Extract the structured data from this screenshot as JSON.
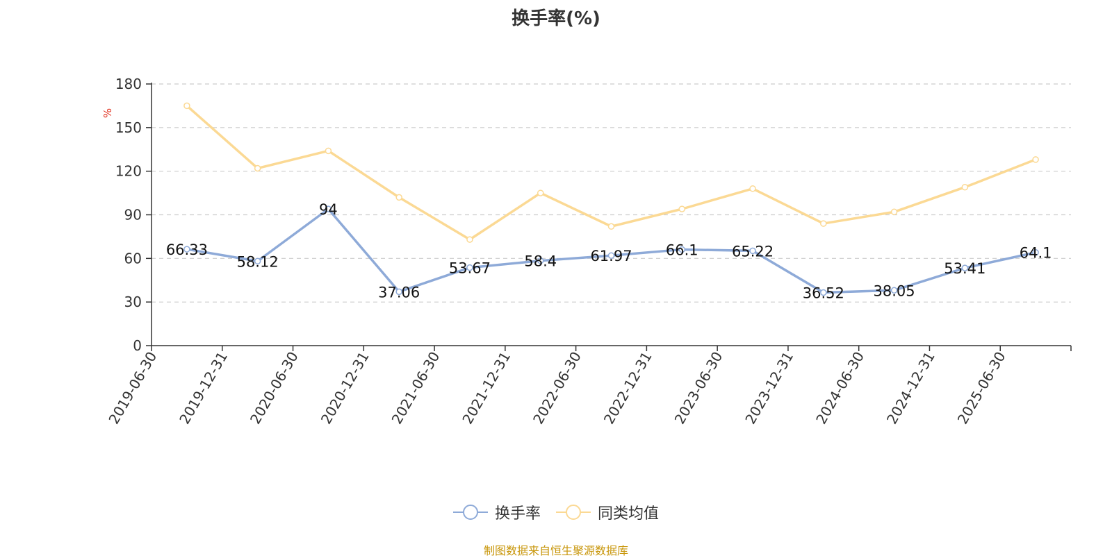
{
  "chart_data": {
    "type": "line",
    "title": "换手率(%)",
    "ylabel": "%",
    "ylim": [
      0,
      180
    ],
    "yticks": [
      0,
      30,
      60,
      90,
      120,
      150,
      180
    ],
    "grid": true,
    "legend_position": "bottom",
    "categories": [
      "2019-06-30",
      "2019-12-31",
      "2020-06-30",
      "2020-12-31",
      "2021-06-30",
      "2021-12-31",
      "2022-06-30",
      "2022-12-31",
      "2023-06-30",
      "2023-12-31",
      "2024-06-30",
      "2024-12-31",
      "2025-06-30"
    ],
    "series": [
      {
        "name": "换手率",
        "color": "#8eaad8",
        "show_labels": true,
        "values": [
          66.33,
          58.12,
          94,
          37.06,
          53.67,
          58.4,
          61.97,
          66.1,
          65.22,
          36.52,
          38.05,
          53.41,
          64.1
        ]
      },
      {
        "name": "同类均值",
        "color": "#fbd994",
        "show_labels": false,
        "values": [
          165,
          122,
          134,
          102,
          73,
          105,
          82,
          94,
          108,
          84,
          92,
          109,
          128
        ]
      }
    ]
  },
  "source_note": "制图数据来自恒生聚源数据库"
}
